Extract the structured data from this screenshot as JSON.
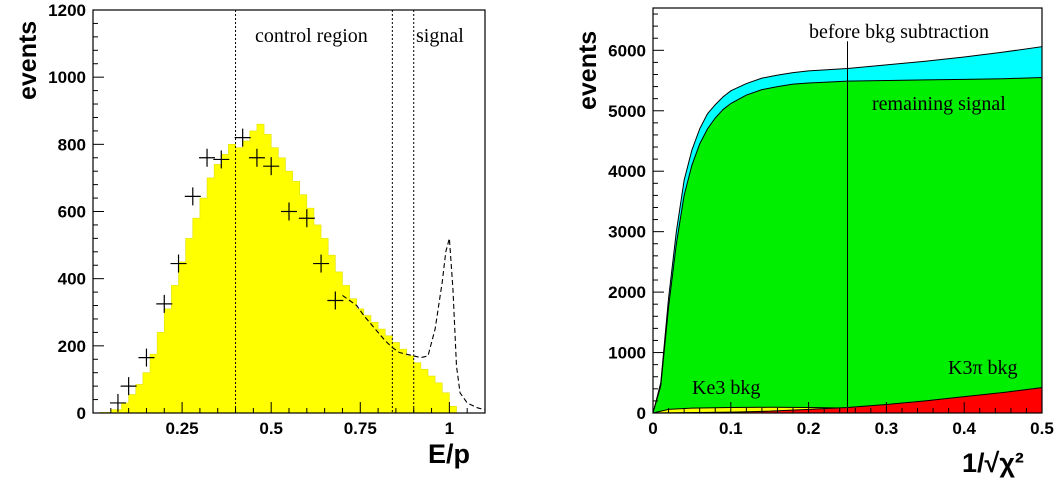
{
  "chart_data": [
    {
      "type": "histogram",
      "xlabel": "E/p",
      "ylabel": "events",
      "xlim": [
        0.0,
        1.1
      ],
      "ylim": [
        0,
        1200
      ],
      "xticks": [
        0.25,
        0.5,
        0.75,
        1.0
      ],
      "xtick_labels": [
        "0.25",
        "0.5",
        "0.75",
        "1"
      ],
      "yticks": [
        0,
        200,
        400,
        600,
        800,
        1000,
        1200
      ],
      "ytick_labels": [
        "0",
        "200",
        "400",
        "600",
        "800",
        "1000",
        "1200"
      ],
      "dotted_lines_x": [
        0.4,
        0.84,
        0.9
      ],
      "annotations": [
        "control region",
        "signal"
      ],
      "series": [
        {
          "style": "yellow filled histogram",
          "color": "#ffff00",
          "points": [
            [
              0.0,
              0
            ],
            [
              0.02,
              2
            ],
            [
              0.05,
              10
            ],
            [
              0.08,
              30
            ],
            [
              0.1,
              55
            ],
            [
              0.12,
              85
            ],
            [
              0.14,
              120
            ],
            [
              0.16,
              175
            ],
            [
              0.18,
              240
            ],
            [
              0.2,
              310
            ],
            [
              0.22,
              380
            ],
            [
              0.24,
              450
            ],
            [
              0.26,
              520
            ],
            [
              0.28,
              580
            ],
            [
              0.3,
              640
            ],
            [
              0.32,
              700
            ],
            [
              0.34,
              740
            ],
            [
              0.36,
              770
            ],
            [
              0.38,
              800
            ],
            [
              0.4,
              790
            ],
            [
              0.42,
              810
            ],
            [
              0.44,
              840
            ],
            [
              0.46,
              860
            ],
            [
              0.48,
              830
            ],
            [
              0.5,
              790
            ],
            [
              0.52,
              760
            ],
            [
              0.54,
              720
            ],
            [
              0.56,
              690
            ],
            [
              0.58,
              650
            ],
            [
              0.6,
              610
            ],
            [
              0.62,
              560
            ],
            [
              0.64,
              520
            ],
            [
              0.66,
              470
            ],
            [
              0.68,
              420
            ],
            [
              0.7,
              380
            ],
            [
              0.72,
              340
            ],
            [
              0.74,
              310
            ],
            [
              0.76,
              290
            ],
            [
              0.78,
              270
            ],
            [
              0.8,
              250
            ],
            [
              0.82,
              230
            ],
            [
              0.84,
              210
            ],
            [
              0.86,
              190
            ],
            [
              0.88,
              170
            ],
            [
              0.9,
              150
            ],
            [
              0.92,
              130
            ],
            [
              0.94,
              110
            ],
            [
              0.96,
              90
            ],
            [
              0.98,
              60
            ],
            [
              1.0,
              20
            ],
            [
              1.02,
              0
            ]
          ]
        },
        {
          "style": "black dashed line histogram",
          "color": "#000000",
          "points": [
            [
              0.7,
              350
            ],
            [
              0.72,
              335
            ],
            [
              0.74,
              320
            ],
            [
              0.76,
              290
            ],
            [
              0.78,
              265
            ],
            [
              0.8,
              240
            ],
            [
              0.82,
              215
            ],
            [
              0.84,
              195
            ],
            [
              0.86,
              180
            ],
            [
              0.88,
              175
            ],
            [
              0.9,
              170
            ],
            [
              0.92,
              165
            ],
            [
              0.94,
              170
            ],
            [
              0.96,
              250
            ],
            [
              0.98,
              390
            ],
            [
              0.99,
              480
            ],
            [
              1.0,
              520
            ],
            [
              1.01,
              370
            ],
            [
              1.02,
              140
            ],
            [
              1.03,
              60
            ],
            [
              1.05,
              30
            ],
            [
              1.08,
              15
            ],
            [
              1.1,
              10
            ]
          ]
        },
        {
          "style": "crosses with error bars",
          "color": "#000000",
          "x": [
            0.07,
            0.1,
            0.15,
            0.2,
            0.24,
            0.28,
            0.32,
            0.36,
            0.42,
            0.46,
            0.5,
            0.55,
            0.6,
            0.64,
            0.68
          ],
          "y": [
            30,
            80,
            165,
            325,
            445,
            645,
            760,
            755,
            820,
            760,
            735,
            600,
            580,
            445,
            335
          ]
        }
      ]
    },
    {
      "type": "histogram",
      "xlabel": "1/√χ²",
      "ylabel": "events",
      "xlim": [
        0,
        0.5
      ],
      "ylim": [
        0,
        6700
      ],
      "xticks": [
        0,
        0.1,
        0.2,
        0.3,
        0.4,
        0.5
      ],
      "xtick_labels": [
        "0",
        "0.1",
        "0.2",
        "0.3",
        "0.4",
        "0.5"
      ],
      "yticks": [
        0,
        1000,
        2000,
        3000,
        4000,
        5000,
        6000
      ],
      "ytick_labels": [
        "0",
        "1000",
        "2000",
        "3000",
        "4000",
        "5000",
        "6000"
      ],
      "vertical_line_x": 0.25,
      "annotations": [
        "before bkg subtraction",
        "remaining signal",
        "Ke3 bkg",
        "K3π bkg"
      ],
      "series": [
        {
          "name": "before bkg subtraction",
          "color": "#00ffff",
          "x": [
            0.0,
            0.01,
            0.02,
            0.03,
            0.04,
            0.05,
            0.06,
            0.07,
            0.08,
            0.09,
            0.1,
            0.12,
            0.14,
            0.16,
            0.18,
            0.2,
            0.25,
            0.3,
            0.35,
            0.4,
            0.45,
            0.5
          ],
          "y": [
            0,
            500,
            1900,
            3000,
            3850,
            4350,
            4700,
            4950,
            5100,
            5230,
            5330,
            5450,
            5540,
            5590,
            5630,
            5660,
            5700,
            5760,
            5820,
            5890,
            5970,
            6060
          ]
        },
        {
          "name": "remaining signal",
          "color": "#00ee00",
          "x": [
            0.0,
            0.01,
            0.02,
            0.03,
            0.04,
            0.05,
            0.06,
            0.07,
            0.08,
            0.09,
            0.1,
            0.12,
            0.14,
            0.16,
            0.18,
            0.2,
            0.25,
            0.3,
            0.35,
            0.4,
            0.45,
            0.5
          ],
          "y": [
            0,
            450,
            1750,
            2800,
            3600,
            4100,
            4450,
            4700,
            4880,
            5020,
            5120,
            5260,
            5350,
            5400,
            5440,
            5460,
            5490,
            5500,
            5510,
            5520,
            5530,
            5550
          ]
        },
        {
          "name": "Ke3 bkg",
          "color": "#ffff00",
          "x": [
            0.0,
            0.02,
            0.05,
            0.1,
            0.15,
            0.2,
            0.25,
            0.3
          ],
          "y": [
            0,
            60,
            80,
            90,
            95,
            90,
            80,
            60
          ]
        },
        {
          "name": "K3π bkg",
          "color": "#ff0000",
          "x": [
            0.0,
            0.1,
            0.15,
            0.2,
            0.25,
            0.3,
            0.35,
            0.4,
            0.45,
            0.5
          ],
          "y": [
            0,
            15,
            30,
            60,
            90,
            140,
            200,
            270,
            340,
            420
          ]
        }
      ]
    }
  ]
}
